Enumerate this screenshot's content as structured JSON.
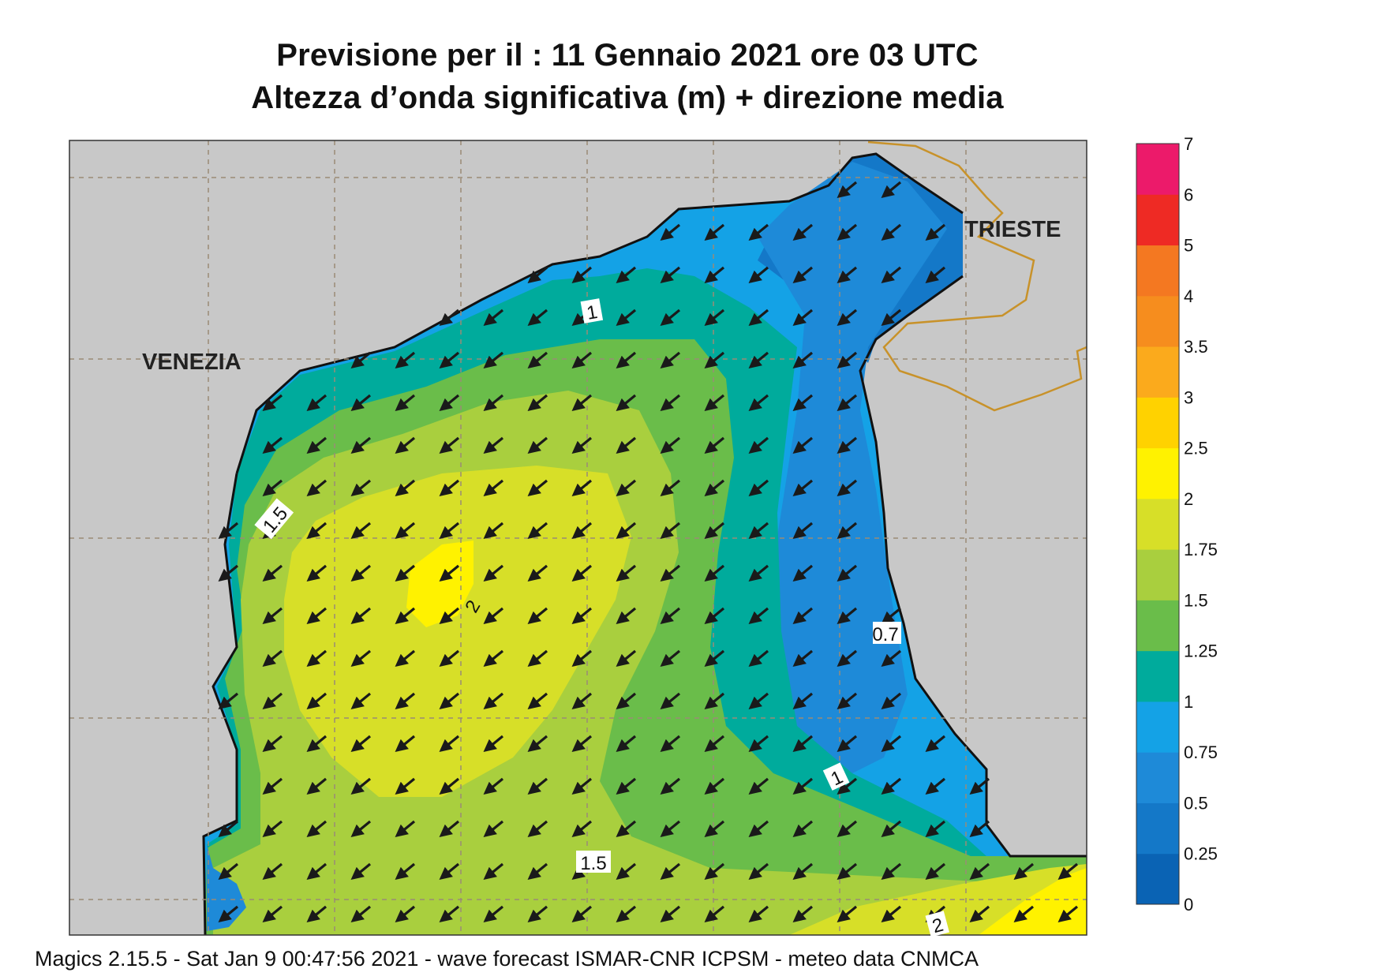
{
  "title_line1": "Previsione per il  :  11  Gennaio  2021   ore 03 UTC",
  "title_line2": "Altezza d’onda significativa (m) + direzione media",
  "footer": "Magics 2.15.5 - Sat Jan  9 00:47:56 2021 - wave forecast  ISMAR-CNR  ICPSM - meteo data   CNMCA",
  "cities": [
    {
      "name": "VENEZIA"
    },
    {
      "name": "TRIESTE"
    }
  ],
  "contour_labels": [
    "1",
    "1.5",
    "2",
    "0.7",
    "1",
    "1.5",
    "2"
  ],
  "colorbar": {
    "ticks": [
      "0",
      "0.25",
      "0.5",
      "0.75",
      "1",
      "1.25",
      "1.5",
      "1.75",
      "2",
      "2.5",
      "3",
      "3.5",
      "4",
      "5",
      "6",
      "7"
    ],
    "colors": [
      "#0a63b4",
      "#1478c8",
      "#1e8ad8",
      "#14a2e6",
      "#00ab9c",
      "#6abd4a",
      "#a9cf3e",
      "#d7df28",
      "#fff200",
      "#ffd200",
      "#fbaa1c",
      "#f68d1e",
      "#f47821",
      "#ee2a24",
      "#ec1a6a"
    ]
  },
  "wave_direction": "north-east to south-west",
  "colors": {
    "land": "#c8c8c8",
    "grid": "#9a8b76",
    "border": "#c8922a",
    "arrow": "#1a1a1a"
  }
}
